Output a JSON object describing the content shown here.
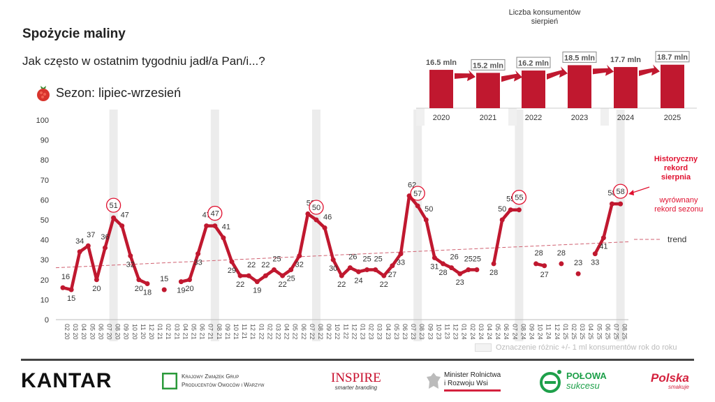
{
  "title": "Spożycie maliny",
  "question": "Jak często w ostatnim tygodniu jadł/a Pan/i...?",
  "season": "Sezon: lipiec-wrzesień",
  "colors": {
    "series": "#c0182f",
    "accent": "#e0102f",
    "highlight_band": "#ececec",
    "trend": "#d06070"
  },
  "chart_data": [
    {
      "type": "line",
      "ylim": [
        0,
        100
      ],
      "yticks": [
        0,
        10,
        20,
        30,
        40,
        50,
        60,
        70,
        80,
        90,
        100
      ],
      "grid": false,
      "categories": [
        "02.20",
        "03.20",
        "04.20",
        "05.20",
        "06.20",
        "07.20",
        "08.20",
        "09.20",
        "10.20",
        "11.20",
        "12.20",
        "01.21",
        "02.21",
        "03.21",
        "04.21",
        "05.21",
        "06.21",
        "07.21",
        "08.21",
        "09.21",
        "10.21",
        "11.21",
        "12.21",
        "01.22",
        "02.22",
        "03.22",
        "04.22",
        "05.22",
        "06.22",
        "07.22",
        "08.22",
        "09.22",
        "10.22",
        "11.22",
        "12.22",
        "01.23",
        "02.23",
        "03.23",
        "04.23",
        "05.23",
        "06.23",
        "07.23",
        "08.23",
        "09.23",
        "10.23",
        "11.23",
        "12.23",
        "01.24",
        "02.24",
        "03.24",
        "04.24",
        "05.24",
        "06.24",
        "07.24",
        "08.24",
        "09.24",
        "10.24",
        "11.24",
        "12.24",
        "01.25",
        "02.25",
        "03.25",
        "04.25",
        "05.25",
        "06.25",
        "07.25",
        "08.25"
      ],
      "values": [
        16,
        15,
        34,
        37,
        20,
        36,
        51,
        47,
        32,
        20,
        18,
        null,
        15,
        null,
        19,
        20,
        33,
        47,
        47,
        41,
        29,
        22,
        22,
        19,
        22,
        25,
        22,
        25,
        32,
        53,
        50,
        46,
        30,
        22,
        26,
        24,
        25,
        25,
        22,
        27,
        33,
        62,
        57,
        50,
        31,
        28,
        26,
        23,
        25,
        25,
        null,
        28,
        50,
        55,
        55,
        null,
        28,
        27,
        null,
        28,
        null,
        23,
        null,
        33,
        41,
        58,
        58
      ],
      "highlighted": [
        "08.20",
        "08.21",
        "08.22",
        "08.23",
        "08.24",
        "08.25"
      ],
      "trend": {
        "label": "trend",
        "start": 26,
        "end": 39
      },
      "annotations": {
        "record_title": "Historyczny rekord sierpnia",
        "record_sub": "wyrównany rekord sezonu"
      },
      "legend_note": "Oznaczenie różnic +/- 1 ml konsumentów rok do roku"
    },
    {
      "type": "bar",
      "title": "Liczba konsumentów sierpień",
      "categories": [
        "2020",
        "2021",
        "2022",
        "2023",
        "2024",
        "2025"
      ],
      "values": [
        16.5,
        15.2,
        16.2,
        18.5,
        17.7,
        18.7
      ],
      "labels": [
        "16.5 mln",
        "15.2 mln",
        "16.2 mln",
        "18.5 mln",
        "17.7 mln",
        "18.7 mln"
      ],
      "boxed": [
        false,
        true,
        true,
        true,
        false,
        true
      ]
    }
  ],
  "footer": {
    "logos": [
      "KANTAR",
      "Krajowy Związek Grup Producentów Owoców i Warzyw",
      "INSPIRE smarter branding",
      "Minister Rolnictwa i Rozwoju Wsi",
      "POŁOWA sukcesu",
      "Polska smakuje"
    ],
    "kantar": "KANTAR",
    "kzg1": "Krajowy Związek Grup",
    "kzg2": "Producentów Owoców i Warzyw",
    "inspire": "INSPIRE",
    "inspire_sub": "smarter branding",
    "ministry1": "Minister Rolnictwa",
    "ministry2": "i Rozwoju Wsi",
    "polowa1": "POŁOWA",
    "polowa2": "sukcesu",
    "polska1": "Polska",
    "polska2": "smakuje"
  }
}
